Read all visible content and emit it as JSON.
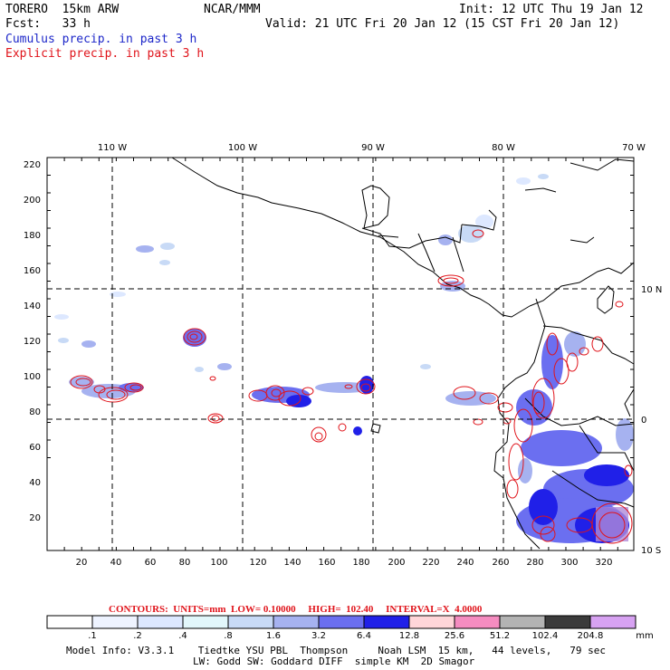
{
  "header": {
    "model": "TORERO  15km ARW",
    "center": "NCAR/MMM",
    "init": "Init: 12 UTC Thu 19 Jan 12",
    "fcst": "Fcst:   33 h",
    "valid": "Valid: 21 UTC Fri 20 Jan 12 (15 CST Fri 20 Jan 12)",
    "legend_cumulus": "Cumulus precip. in past 3 h",
    "legend_explicit": "Explicit precip. in past 3 h"
  },
  "axes": {
    "top_lon": [
      "110 W",
      "100 W",
      "90 W",
      "80 W",
      "70 W"
    ],
    "right_lat": [
      "10 N",
      "0",
      "10 S"
    ],
    "left_y": [
      "220",
      "200",
      "180",
      "160",
      "140",
      "120",
      "100",
      "80",
      "60",
      "40",
      "20"
    ],
    "bottom_x": [
      "20",
      "40",
      "60",
      "80",
      "100",
      "120",
      "140",
      "160",
      "180",
      "200",
      "220",
      "240",
      "260",
      "280",
      "300",
      "320"
    ]
  },
  "contours": {
    "text": "CONTOURS:  UNITS=mm  LOW= 0.10000     HIGH=  102.40     INTERVAL=X  4.0000"
  },
  "colorbar": {
    "labels": [
      ".1",
      ".2",
      ".4",
      ".8",
      "1.6",
      "3.2",
      "6.4",
      "12.8",
      "25.6",
      "51.2",
      "102.4",
      "204.8"
    ],
    "units": "mm",
    "colors": [
      "#ffffff",
      "#eef3ff",
      "#dde8ff",
      "#e2f7fb",
      "#c8daf6",
      "#a6b2f0",
      "#6b6ff0",
      "#2020e8",
      "#ffd6d9",
      "#f58cc0",
      "#b3b3b3",
      "#3b3b3b",
      "#d7a2f2"
    ]
  },
  "footer": {
    "line1": "Model Info: V3.3.1    Tiedtke YSU PBL  Thompson     Noah LSM  15 km,   44 levels,   79 sec",
    "line2": "LW: Godd SW: Goddard DIFF  simple KM  2D Smagor"
  }
}
